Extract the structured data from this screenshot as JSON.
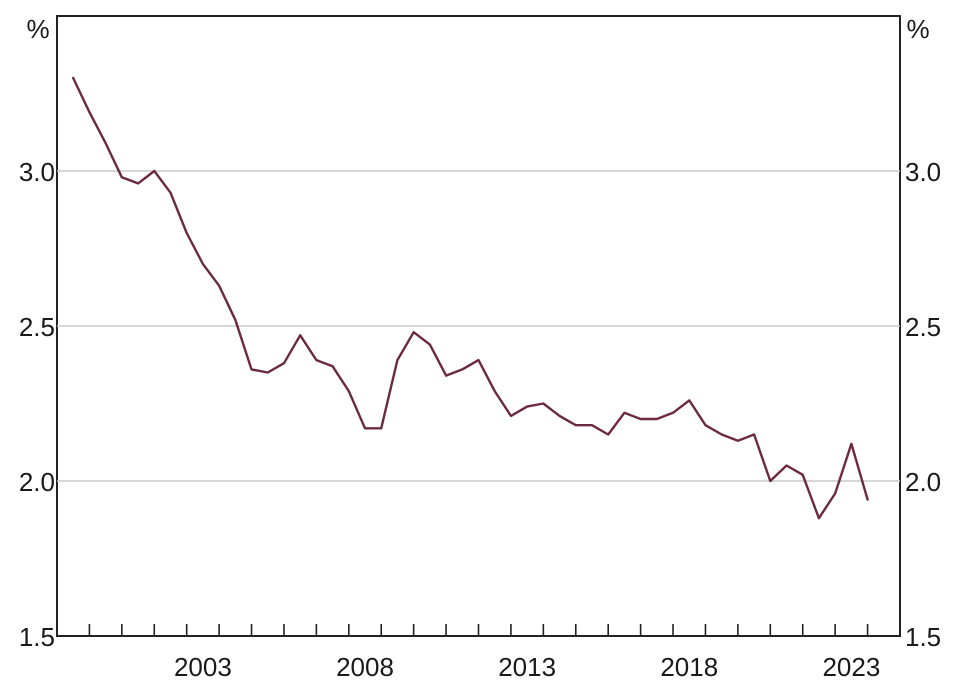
{
  "chart_data": {
    "type": "line",
    "title": "",
    "xlabel": "",
    "ylabel": "",
    "y_unit_left": "%",
    "y_unit_right": "%",
    "ylim": [
      1.5,
      3.5
    ],
    "yticks": [
      1.5,
      2.0,
      2.5,
      3.0
    ],
    "ytick_labels": [
      "1.5",
      "2.0",
      "2.5",
      "3.0"
    ],
    "xlim": [
      1998,
      2024
    ],
    "xticks_labeled": [
      2003,
      2008,
      2013,
      2018,
      2023
    ],
    "xtick_labels": [
      "2003",
      "2008",
      "2013",
      "2018",
      "2023"
    ],
    "xticks_minor": [
      1999,
      2000,
      2001,
      2002,
      2003,
      2004,
      2005,
      2006,
      2007,
      2008,
      2009,
      2010,
      2011,
      2012,
      2013,
      2014,
      2015,
      2016,
      2017,
      2018,
      2019,
      2020,
      2021,
      2022,
      2023
    ],
    "grid": "horizontal",
    "line_color": "#6b2a3e",
    "series": [
      {
        "x": [
          1998.5,
          1999,
          1999.5,
          2000,
          2000.5,
          2001,
          2001.5,
          2002,
          2002.5,
          2003,
          2003.5,
          2004,
          2004.5,
          2005,
          2005.5,
          2006,
          2006.5,
          2007,
          2007.5,
          2008,
          2008.5,
          2009,
          2009.5,
          2010,
          2010.5,
          2011,
          2011.5,
          2012,
          2012.5,
          2013,
          2013.5,
          2014,
          2014.5,
          2015,
          2015.5,
          2016,
          2016.5,
          2017,
          2017.5,
          2018,
          2018.5,
          2019,
          2019.5,
          2020,
          2020.5,
          2021,
          2021.5,
          2022,
          2022.5,
          2023,
          2023.5
        ],
        "values": [
          3.3,
          3.19,
          3.09,
          2.98,
          2.96,
          3.0,
          2.93,
          2.8,
          2.7,
          2.63,
          2.52,
          2.36,
          2.35,
          2.38,
          2.47,
          2.39,
          2.37,
          2.29,
          2.17,
          2.17,
          2.39,
          2.48,
          2.44,
          2.34,
          2.36,
          2.39,
          2.29,
          2.21,
          2.24,
          2.25,
          2.21,
          2.18,
          2.18,
          2.15,
          2.22,
          2.2,
          2.2,
          2.22,
          2.26,
          2.18,
          2.15,
          2.13,
          2.15,
          2.0,
          2.05,
          2.02,
          1.88,
          1.96,
          2.12,
          1.94,
          null
        ]
      }
    ]
  }
}
